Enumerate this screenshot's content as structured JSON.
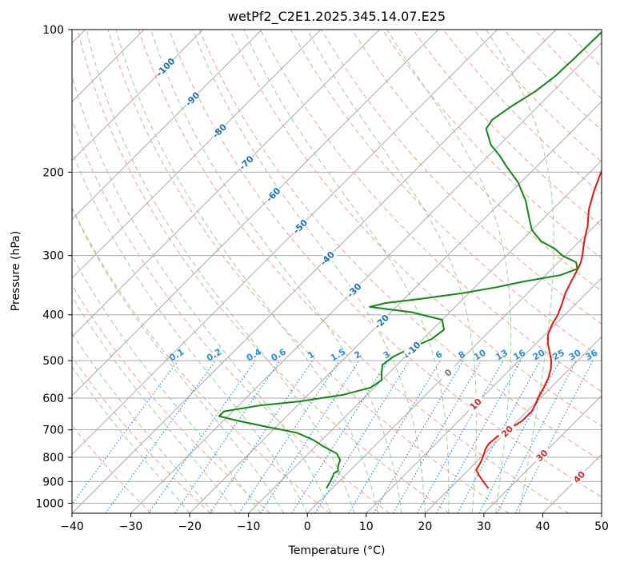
{
  "chart_data": {
    "type": "line",
    "subtype": "skew-t log-p diagram",
    "title": "wetPf2_C2E1.2025.345.14.07.E25",
    "xlabel": "Temperature (°C)",
    "ylabel": "Pressure (hPa)",
    "xlim": [
      -40,
      50
    ],
    "ylim": [
      1050,
      100
    ],
    "y_scale": "log",
    "x_ticks": [
      "−40",
      "−30",
      "−20",
      "−10",
      "0",
      "10",
      "20",
      "30",
      "40",
      "50"
    ],
    "x_tick_values": [
      -40,
      -30,
      -20,
      -10,
      0,
      10,
      20,
      30,
      40,
      50
    ],
    "y_ticks": [
      "100",
      "200",
      "300",
      "400",
      "500",
      "600",
      "700",
      "800",
      "900",
      "1000"
    ],
    "y_tick_values": [
      100,
      200,
      300,
      400,
      500,
      600,
      700,
      800,
      900,
      1000
    ],
    "grid": true,
    "series": [
      {
        "role": "temperature",
        "color": "#e8140f",
        "points": [
          [
            26.5,
            930
          ],
          [
            24.5,
            900
          ],
          [
            22.5,
            870
          ],
          [
            21.3,
            850
          ],
          [
            20.8,
            820
          ],
          [
            20.3,
            800
          ],
          [
            19.4,
            770
          ],
          [
            19.0,
            750
          ],
          [
            19.2,
            725
          ],
          [
            19.5,
            710
          ],
          [
            20.2,
            690
          ],
          [
            20.8,
            670
          ],
          [
            20.8,
            640
          ],
          [
            20.3,
            620
          ],
          [
            19.6,
            600
          ],
          [
            18.8,
            570
          ],
          [
            18.0,
            545
          ],
          [
            16.8,
            520
          ],
          [
            15.5,
            500
          ],
          [
            13.8,
            480
          ],
          [
            12.0,
            460
          ],
          [
            10.5,
            440
          ],
          [
            9.5,
            420
          ],
          [
            8.8,
            400
          ],
          [
            7.7,
            380
          ],
          [
            6.4,
            360
          ],
          [
            5.4,
            340
          ],
          [
            4.4,
            320
          ],
          [
            3.8,
            310
          ],
          [
            2.9,
            300
          ],
          [
            0.8,
            280
          ],
          [
            -1.2,
            260
          ],
          [
            -3.8,
            240
          ],
          [
            -6.0,
            220
          ],
          [
            -8.1,
            200
          ],
          [
            -9.9,
            180
          ],
          [
            -11.6,
            165
          ],
          [
            -13.5,
            155
          ],
          [
            -15.8,
            145
          ],
          [
            -18.5,
            135
          ],
          [
            -20.2,
            125
          ],
          [
            -21.8,
            115
          ],
          [
            -24.5,
            108
          ],
          [
            -26.6,
            100
          ]
        ]
      },
      {
        "role": "dewpoint",
        "color": "#118811",
        "points": [
          [
            -1.0,
            930
          ],
          [
            -1.5,
            900
          ],
          [
            -2.0,
            875
          ],
          [
            -2.3,
            865
          ],
          [
            -2.0,
            855
          ],
          [
            -2.8,
            835
          ],
          [
            -3.5,
            810
          ],
          [
            -5.2,
            785
          ],
          [
            -8.5,
            760
          ],
          [
            -11.5,
            735
          ],
          [
            -15.5,
            710
          ],
          [
            -21.5,
            690
          ],
          [
            -27.5,
            670
          ],
          [
            -31.5,
            655
          ],
          [
            -31.5,
            640
          ],
          [
            -26.5,
            622
          ],
          [
            -20.5,
            610
          ],
          [
            -14.0,
            590
          ],
          [
            -10.6,
            570
          ],
          [
            -10.0,
            550
          ],
          [
            -11.3,
            530
          ],
          [
            -12.5,
            510
          ],
          [
            -12.0,
            490
          ],
          [
            -10.5,
            470
          ],
          [
            -8.5,
            450
          ],
          [
            -8.0,
            430
          ],
          [
            -10.0,
            410
          ],
          [
            -16.5,
            395
          ],
          [
            -24.5,
            385
          ],
          [
            -22.5,
            378
          ],
          [
            -17.0,
            370
          ],
          [
            -11.0,
            360
          ],
          [
            -6.3,
            350
          ],
          [
            -2.5,
            340
          ],
          [
            2.5,
            330
          ],
          [
            4.3,
            320
          ],
          [
            3.0,
            310
          ],
          [
            -0.5,
            300
          ],
          [
            -3.0,
            290
          ],
          [
            -6.5,
            280
          ],
          [
            -10.0,
            265
          ],
          [
            -12.5,
            250
          ],
          [
            -16.0,
            230
          ],
          [
            -20.5,
            210
          ],
          [
            -25.0,
            195
          ],
          [
            -28.0,
            185
          ],
          [
            -31.5,
            175
          ],
          [
            -35.0,
            162
          ],
          [
            -35.5,
            155
          ],
          [
            -34.5,
            145
          ],
          [
            -33.0,
            135
          ],
          [
            -32.2,
            125
          ],
          [
            -32.0,
            115
          ],
          [
            -31.8,
            100
          ]
        ]
      }
    ],
    "isotherm_labels": [
      "-100",
      "-90",
      "-80",
      "-70",
      "-60",
      "-50",
      "-40",
      "-30",
      "-20",
      "-10",
      "0",
      "10",
      "20",
      "30",
      "40"
    ],
    "isotherm_values": [
      -100,
      -90,
      -80,
      -70,
      -60,
      -50,
      -40,
      -30,
      -20,
      -10,
      0,
      10,
      20,
      30,
      40
    ],
    "mixing_ratio_labels": [
      "0.1",
      "0.2",
      "0.4",
      "0.6",
      "1",
      "1.5",
      "2",
      "3",
      "4",
      "6",
      "8",
      "10",
      "13",
      "16",
      "20",
      "25",
      "30",
      "36"
    ],
    "mixing_ratio_values": [
      0.1,
      0.2,
      0.4,
      0.6,
      1,
      1.5,
      2,
      3,
      4,
      6,
      8,
      10,
      13,
      16,
      20,
      25,
      30,
      36
    ],
    "colors": {
      "isotherm_cold": "#1f6fb5",
      "isotherm_zero": "#777777",
      "isotherm_warm": "#d62728",
      "mixing_ratio": "#2a8fe0",
      "dry_adiabat": "#f4a085",
      "moist_adiabat": "#99cc99",
      "grid": "#aaaaaa"
    }
  }
}
